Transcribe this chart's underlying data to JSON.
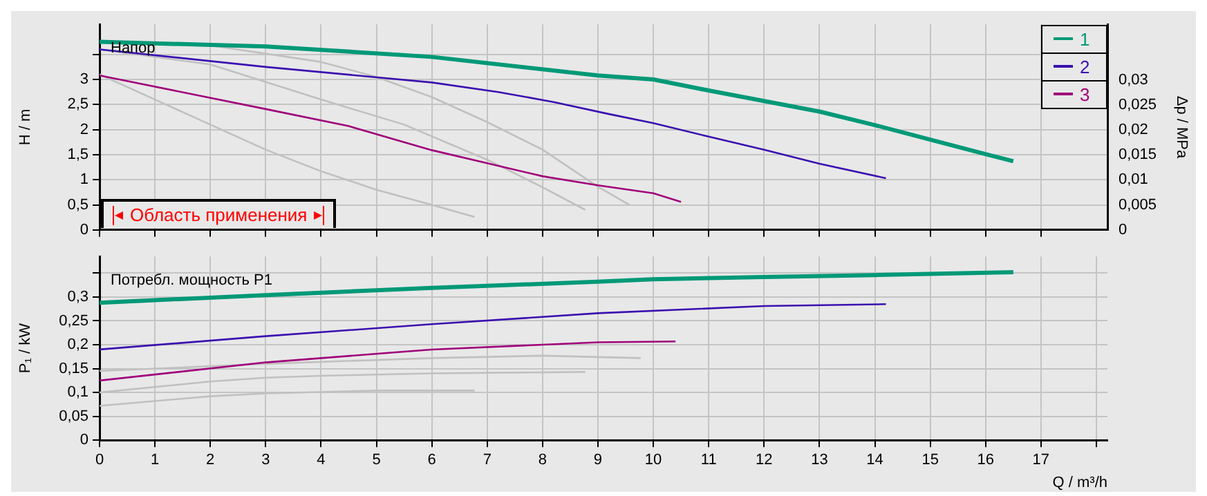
{
  "chart_data": [
    {
      "type": "line",
      "ylabel": "H / m",
      "y2label": "Δp / MPa",
      "annotations": [
        "Напор",
        "Область применения"
      ],
      "xlim": [
        0,
        18.2
      ],
      "xticks": [
        0,
        1,
        2,
        3,
        4,
        5,
        6,
        7,
        8,
        9,
        10,
        11,
        12,
        13,
        14,
        15,
        16,
        17
      ],
      "ylim": [
        0,
        4.1
      ],
      "yticks": [
        0,
        {
          "value": 0.5,
          "label": "0,5"
        },
        1,
        {
          "value": 1.5,
          "label": "1,5"
        },
        2,
        {
          "value": 2.5,
          "label": "2,5"
        },
        3,
        {
          "value": 3.5,
          "label": null
        }
      ],
      "y2lim": [
        0,
        0.0411
      ],
      "y2ticks": [
        0,
        {
          "value": 0.005,
          "label": "0,005"
        },
        {
          "value": 0.01,
          "label": "0,01"
        },
        {
          "value": 0.015,
          "label": "0,015"
        },
        {
          "value": 0.02,
          "label": "0,02"
        },
        {
          "value": 0.025,
          "label": "0,025"
        },
        {
          "value": 0.03,
          "label": "0,03"
        }
      ],
      "grid": true,
      "legend": "top right",
      "tick_labels": "y",
      "marker": "none",
      "line_style": "solid",
      "series": [
        {
          "name": "1",
          "color": "#009977",
          "x": [
            0,
            3,
            6,
            9,
            10,
            11,
            12,
            13,
            14,
            15,
            16,
            16.5
          ],
          "values": [
            3.75,
            3.66,
            3.45,
            3.08,
            3.0,
            2.78,
            2.57,
            2.36,
            2.09,
            1.8,
            1.51,
            1.37
          ]
        },
        {
          "name": "2",
          "color": "#3a10b0",
          "x": [
            0,
            3,
            6,
            7.2,
            8.2,
            9.2,
            10,
            11,
            12,
            13,
            14.2
          ],
          "values": [
            3.6,
            3.25,
            2.94,
            2.75,
            2.55,
            2.31,
            2.13,
            1.86,
            1.6,
            1.32,
            1.03
          ]
        },
        {
          "name": "3",
          "color": "#a0007a",
          "x": [
            0,
            3,
            4.5,
            6,
            7,
            8,
            9,
            10,
            10.5
          ],
          "values": [
            3.08,
            2.41,
            2.07,
            1.59,
            1.33,
            1.07,
            0.89,
            0.73,
            0.56
          ]
        },
        {
          "color": "#c0c0c0",
          "x": [
            0,
            2,
            4,
            5,
            6,
            7,
            8,
            9,
            9.57
          ],
          "values": [
            3.75,
            3.68,
            3.35,
            3.05,
            2.65,
            2.15,
            1.6,
            0.86,
            0.5
          ]
        },
        {
          "color": "#c0c0c0",
          "x": [
            0,
            2,
            4,
            5.5,
            7,
            8,
            8.77
          ],
          "values": [
            3.6,
            3.3,
            2.6,
            2.1,
            1.4,
            0.85,
            0.4
          ]
        },
        {
          "color": "#c0c0c0",
          "x": [
            0,
            1,
            2,
            3,
            4,
            5,
            6,
            6.77
          ],
          "values": [
            3.1,
            2.6,
            2.1,
            1.6,
            1.17,
            0.8,
            0.5,
            0.26
          ]
        }
      ]
    },
    {
      "type": "line",
      "xlabel": "Q / m³/h",
      "ylabel": "P₁ / kW",
      "annotations": [
        "Потребл. мощность P1"
      ],
      "xlim": [
        0,
        18.2
      ],
      "xticks": [
        0,
        1,
        2,
        3,
        4,
        5,
        6,
        7,
        8,
        9,
        10,
        11,
        12,
        13,
        14,
        15,
        16,
        17,
        {
          "value": 18,
          "label": null
        }
      ],
      "ylim": [
        0,
        0.385
      ],
      "yticks": [
        0,
        {
          "value": 0.05,
          "label": "0,05"
        },
        {
          "value": 0.1,
          "label": "0,1"
        },
        {
          "value": 0.15,
          "label": "0,15"
        },
        {
          "value": 0.2,
          "label": "0,2"
        },
        {
          "value": 0.25,
          "label": "0,25"
        },
        {
          "value": 0.3,
          "label": "0,3"
        },
        {
          "value": 0.35,
          "label": null
        }
      ],
      "grid": true,
      "marker": "none",
      "line_style": "solid",
      "series": [
        {
          "color": "#009977",
          "x": [
            0,
            3,
            6,
            9,
            10,
            12,
            14,
            16.5
          ],
          "values": [
            0.288,
            0.304,
            0.319,
            0.332,
            0.337,
            0.342,
            0.346,
            0.352
          ]
        },
        {
          "color": "#3a10b0",
          "x": [
            0,
            3,
            6,
            9,
            12,
            14.2
          ],
          "values": [
            0.19,
            0.218,
            0.243,
            0.266,
            0.281,
            0.285
          ]
        },
        {
          "color": "#a0007a",
          "x": [
            0,
            3,
            6,
            9,
            10.4
          ],
          "values": [
            0.125,
            0.163,
            0.19,
            0.205,
            0.207
          ]
        },
        {
          "color": "#c0c0c0",
          "x": [
            0,
            3,
            6,
            8,
            9.77
          ],
          "values": [
            0.145,
            0.16,
            0.172,
            0.177,
            0.172
          ]
        },
        {
          "color": "#c0c0c0",
          "x": [
            0,
            2,
            3,
            4,
            6,
            8.77
          ],
          "values": [
            0.1,
            0.123,
            0.131,
            0.135,
            0.14,
            0.143
          ]
        },
        {
          "color": "#c0c0c0",
          "x": [
            0,
            2,
            3,
            5,
            6.77
          ],
          "values": [
            0.072,
            0.092,
            0.098,
            0.104,
            0.104
          ]
        }
      ]
    }
  ]
}
